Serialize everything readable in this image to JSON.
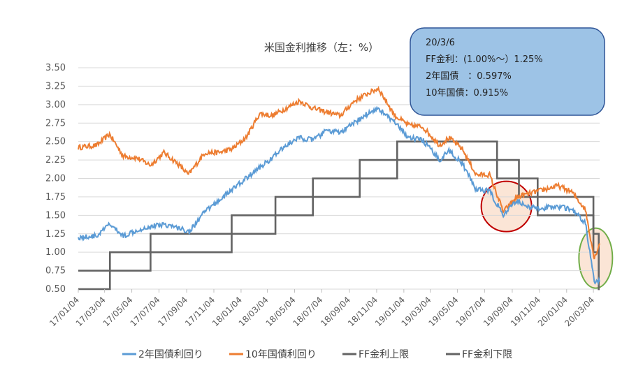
{
  "chart_data": {
    "type": "line",
    "title": "米国金利推移（左：%）",
    "xlabel": "",
    "ylabel": "",
    "ylim": [
      0.5,
      3.5
    ],
    "y_ticks": [
      "3.50",
      "3.25",
      "3.00",
      "2.75",
      "2.50",
      "2.25",
      "2.00",
      "1.75",
      "1.50",
      "1.25",
      "1.00",
      "0.75",
      "0.50"
    ],
    "x_ticks": [
      "17/01/04",
      "17/03/04",
      "17/05/04",
      "17/07/04",
      "17/09/04",
      "17/11/04",
      "18/01/04",
      "18/03/04",
      "18/05/04",
      "18/07/04",
      "18/09/04",
      "18/11/04",
      "19/01/04",
      "19/03/04",
      "19/05/04",
      "19/07/04",
      "19/09/04",
      "19/11/04",
      "20/01/04",
      "20/03/04"
    ],
    "x_range": [
      "2017-01-04",
      "2020-03-18"
    ],
    "grid": "horizontal",
    "legend_position": "bottom",
    "series": [
      {
        "name": "2年国債利回り",
        "color": "#5B9BD5",
        "style": "line",
        "x": [
          "2017-01-04",
          "2017-02-15",
          "2017-03-15",
          "2017-04-15",
          "2017-05-15",
          "2017-06-15",
          "2017-07-15",
          "2017-08-15",
          "2017-09-10",
          "2017-10-15",
          "2017-11-15",
          "2017-12-15",
          "2018-01-15",
          "2018-02-15",
          "2018-03-15",
          "2018-04-15",
          "2018-05-15",
          "2018-06-15",
          "2018-07-15",
          "2018-08-15",
          "2018-09-15",
          "2018-10-15",
          "2018-11-08",
          "2018-12-15",
          "2019-01-15",
          "2019-02-15",
          "2019-03-25",
          "2019-04-15",
          "2019-05-15",
          "2019-06-15",
          "2019-07-15",
          "2019-08-15",
          "2019-09-15",
          "2019-10-15",
          "2019-11-15",
          "2019-12-15",
          "2020-01-15",
          "2020-02-15",
          "2020-03-06",
          "2020-03-18"
        ],
        "y": [
          1.2,
          1.22,
          1.38,
          1.22,
          1.3,
          1.35,
          1.38,
          1.33,
          1.28,
          1.55,
          1.7,
          1.85,
          2.0,
          2.15,
          2.28,
          2.45,
          2.55,
          2.52,
          2.65,
          2.62,
          2.75,
          2.88,
          2.95,
          2.75,
          2.55,
          2.52,
          2.25,
          2.38,
          2.2,
          1.85,
          1.83,
          1.5,
          1.7,
          1.6,
          1.6,
          1.62,
          1.58,
          1.4,
          0.597,
          0.6
        ]
      },
      {
        "name": "10年国債利回り",
        "color": "#ED7D31",
        "style": "line",
        "x": [
          "2017-01-04",
          "2017-02-15",
          "2017-03-15",
          "2017-04-15",
          "2017-05-15",
          "2017-06-15",
          "2017-07-15",
          "2017-08-15",
          "2017-09-08",
          "2017-10-15",
          "2017-11-15",
          "2017-12-15",
          "2018-01-15",
          "2018-02-15",
          "2018-03-15",
          "2018-04-15",
          "2018-05-15",
          "2018-06-15",
          "2018-07-15",
          "2018-08-15",
          "2018-09-15",
          "2018-10-15",
          "2018-11-08",
          "2018-12-15",
          "2019-01-15",
          "2019-02-15",
          "2019-03-25",
          "2019-04-15",
          "2019-05-15",
          "2019-06-15",
          "2019-07-15",
          "2019-08-15",
          "2019-09-15",
          "2019-10-15",
          "2019-11-15",
          "2019-12-15",
          "2020-01-15",
          "2020-02-15",
          "2020-03-06",
          "2020-03-18"
        ],
        "y": [
          2.42,
          2.45,
          2.6,
          2.3,
          2.28,
          2.18,
          2.35,
          2.2,
          2.05,
          2.35,
          2.35,
          2.4,
          2.55,
          2.88,
          2.85,
          2.95,
          3.05,
          2.95,
          2.9,
          2.85,
          3.05,
          3.15,
          3.22,
          2.85,
          2.72,
          2.7,
          2.45,
          2.55,
          2.4,
          2.05,
          2.05,
          1.55,
          1.75,
          1.8,
          1.85,
          1.9,
          1.82,
          1.58,
          0.915,
          1.12
        ]
      },
      {
        "name": "FF金利上限",
        "color": "#636363",
        "style": "step",
        "x": [
          "2017-01-04",
          "2017-03-16",
          "2017-06-15",
          "2017-12-14",
          "2018-03-22",
          "2018-06-14",
          "2018-09-27",
          "2018-12-20",
          "2019-08-01",
          "2019-09-19",
          "2019-10-31",
          "2020-03-04",
          "2020-03-16"
        ],
        "y": [
          0.75,
          1.0,
          1.25,
          1.5,
          1.75,
          2.0,
          2.25,
          2.5,
          2.25,
          2.0,
          1.75,
          1.25,
          0.25
        ]
      },
      {
        "name": "FF金利下限",
        "color": "#636363",
        "style": "step",
        "x": [
          "2017-01-04",
          "2017-03-16",
          "2017-06-15",
          "2017-12-14",
          "2018-03-22",
          "2018-06-14",
          "2018-09-27",
          "2018-12-20",
          "2019-08-01",
          "2019-09-19",
          "2019-10-31",
          "2020-03-04",
          "2020-03-16"
        ],
        "y": [
          0.5,
          0.75,
          1.0,
          1.25,
          1.5,
          1.75,
          2.0,
          2.25,
          2.0,
          1.75,
          1.5,
          1.0,
          0.0
        ]
      }
    ]
  },
  "annotation": {
    "lines": [
      "20/3/6",
      "FF金利：(1.00%～）1.25%",
      "2年国債　：0.597%",
      "10年国債：0.915%"
    ],
    "fill_color": "#9DC3E6",
    "border_color": "#2F5597"
  },
  "highlights": [
    {
      "shape": "circle",
      "stroke": "#C00000",
      "fill": "#FBE5D6"
    },
    {
      "shape": "ellipse",
      "stroke": "#70AD47",
      "fill": "#FBE5D6"
    }
  ]
}
